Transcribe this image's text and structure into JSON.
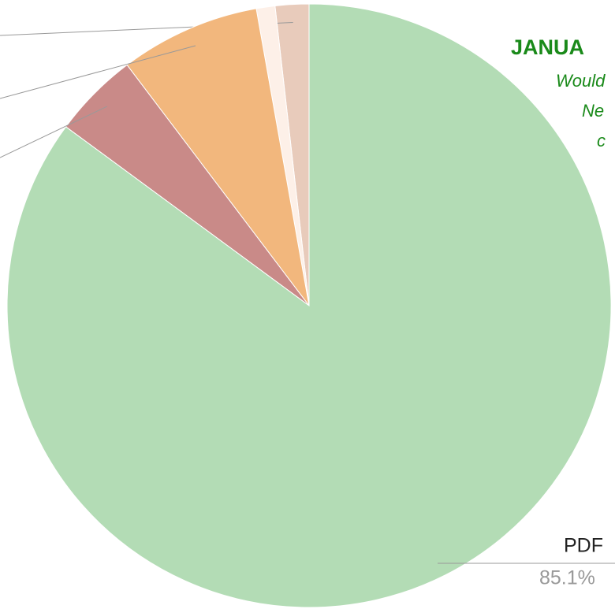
{
  "chart_data": {
    "type": "pie",
    "title": "JANUA",
    "subtitle_lines": [
      "Would",
      "Ne",
      "c"
    ],
    "categories": [
      null,
      null,
      null,
      null,
      "PDF"
    ],
    "values": [
      1.8,
      1.0,
      7.5,
      4.6,
      85.1
    ],
    "value_labels": [
      null,
      null,
      null,
      null,
      "85.1%"
    ],
    "colors": [
      "#e8cbbb",
      "#fdf0e8",
      "#f2b77d",
      "#c98a88",
      "#b3dcb5"
    ]
  }
}
